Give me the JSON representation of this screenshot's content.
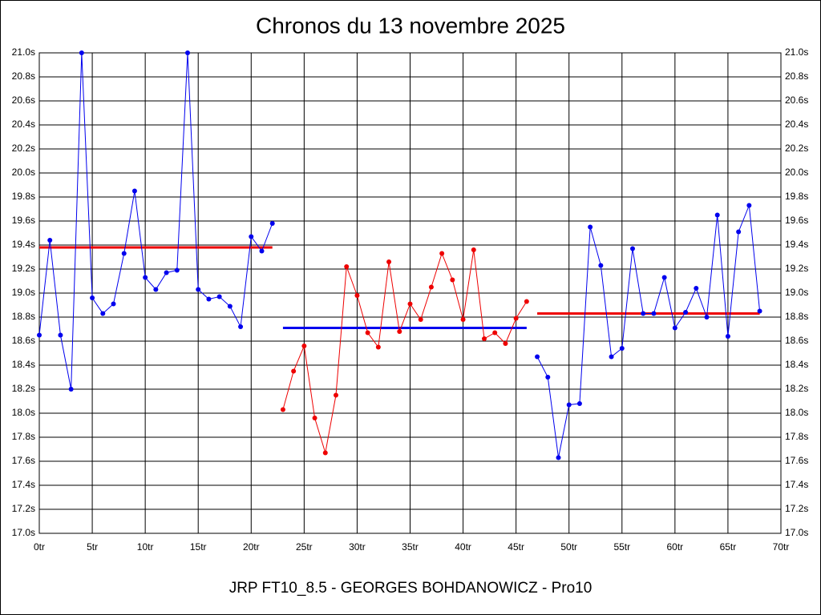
{
  "chart_data": {
    "type": "line",
    "title": "Chronos du 13 novembre 2025",
    "footer": "JRP FT10_8.5 - GEORGES BOHDANOWICZ - Pro10",
    "xlim": [
      0,
      70
    ],
    "xticks": [
      {
        "value": 0,
        "label": "0tr"
      },
      {
        "value": 5,
        "label": "5tr"
      },
      {
        "value": 10,
        "label": "10tr"
      },
      {
        "value": 15,
        "label": "15tr"
      },
      {
        "value": 20,
        "label": "20tr"
      },
      {
        "value": 25,
        "label": "25tr"
      },
      {
        "value": 30,
        "label": "30tr"
      },
      {
        "value": 35,
        "label": "35tr"
      },
      {
        "value": 40,
        "label": "40tr"
      },
      {
        "value": 45,
        "label": "45tr"
      },
      {
        "value": 50,
        "label": "50tr"
      },
      {
        "value": 55,
        "label": "55tr"
      },
      {
        "value": 60,
        "label": "60tr"
      },
      {
        "value": 65,
        "label": "65tr"
      },
      {
        "value": 70,
        "label": "70tr"
      }
    ],
    "ylim": [
      17,
      21
    ],
    "yticks": [
      {
        "value": 17.0,
        "label": "17.0s"
      },
      {
        "value": 17.2,
        "label": "17.2s"
      },
      {
        "value": 17.4,
        "label": "17.4s"
      },
      {
        "value": 17.6,
        "label": "17.6s"
      },
      {
        "value": 17.8,
        "label": "17.8s"
      },
      {
        "value": 18.0,
        "label": "18.0s"
      },
      {
        "value": 18.2,
        "label": "18.2s"
      },
      {
        "value": 18.4,
        "label": "18.4s"
      },
      {
        "value": 18.6,
        "label": "18.6s"
      },
      {
        "value": 18.8,
        "label": "18.8s"
      },
      {
        "value": 19.0,
        "label": "19.0s"
      },
      {
        "value": 19.2,
        "label": "19.2s"
      },
      {
        "value": 19.4,
        "label": "19.4s"
      },
      {
        "value": 19.6,
        "label": "19.6s"
      },
      {
        "value": 19.8,
        "label": "19.8s"
      },
      {
        "value": 20.0,
        "label": "20.0s"
      },
      {
        "value": 20.2,
        "label": "20.2s"
      },
      {
        "value": 20.4,
        "label": "20.4s"
      },
      {
        "value": 20.6,
        "label": "20.6s"
      },
      {
        "value": 20.8,
        "label": "20.8s"
      },
      {
        "value": 21.0,
        "label": "21.0s"
      }
    ],
    "grid": true,
    "series": [
      {
        "color": "#0000ee",
        "x": [
          0,
          1,
          2,
          3,
          4,
          5,
          6,
          7,
          8,
          9,
          10,
          11,
          12,
          13,
          14,
          15,
          16,
          17,
          18,
          19,
          20,
          21,
          22
        ],
        "values": [
          18.65,
          19.44,
          18.65,
          18.2,
          21.0,
          18.96,
          18.83,
          18.91,
          19.33,
          19.85,
          19.13,
          19.03,
          19.17,
          19.19,
          21.0,
          19.03,
          18.95,
          18.97,
          18.89,
          18.72,
          19.47,
          19.35,
          19.58
        ]
      },
      {
        "color": "#ee0000",
        "x": [
          23,
          24,
          25,
          26,
          27,
          28,
          29,
          30,
          31,
          32,
          33,
          34,
          35,
          36,
          37,
          38,
          39,
          40,
          41,
          42,
          43,
          44,
          45,
          46
        ],
        "values": [
          18.03,
          18.35,
          18.56,
          17.96,
          17.67,
          18.15,
          19.22,
          18.98,
          18.67,
          18.55,
          19.26,
          18.68,
          18.91,
          18.78,
          19.05,
          19.33,
          19.11,
          18.78,
          19.36,
          18.62,
          18.67,
          18.58,
          18.79,
          18.93
        ]
      },
      {
        "color": "#0000ee",
        "x": [
          47,
          48,
          49,
          50,
          51,
          52,
          53,
          54,
          55,
          56,
          57,
          58,
          59,
          60,
          61,
          62,
          63,
          64,
          65,
          66,
          67,
          68
        ],
        "values": [
          18.47,
          18.3,
          17.63,
          18.07,
          18.08,
          19.55,
          19.23,
          18.47,
          18.54,
          19.37,
          18.83,
          18.83,
          19.13,
          18.71,
          18.84,
          19.04,
          18.8,
          19.65,
          18.64,
          19.51,
          19.73,
          18.85
        ]
      }
    ],
    "averages": [
      {
        "color": "#ee0000",
        "x": [
          0,
          22
        ],
        "value": 19.38
      },
      {
        "color": "#0000ee",
        "x": [
          23,
          46
        ],
        "value": 18.71
      },
      {
        "color": "#ee0000",
        "x": [
          47,
          68
        ],
        "value": 18.83
      }
    ]
  }
}
